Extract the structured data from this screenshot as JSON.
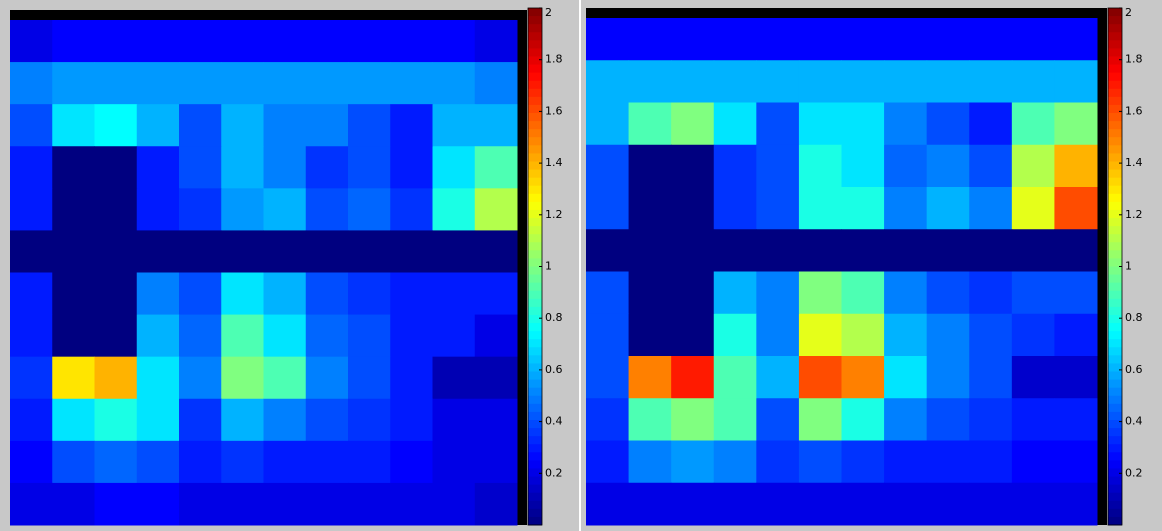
{
  "chart_data": [
    {
      "type": "heatmap",
      "clim": [
        0,
        2
      ],
      "cticks": [
        0.2,
        0.4,
        0.6,
        0.8,
        1,
        1.2,
        1.4,
        1.6,
        1.8,
        2
      ],
      "values": [
        [
          0.2,
          0.25,
          0.25,
          0.25,
          0.25,
          0.25,
          0.25,
          0.25,
          0.25,
          0.25,
          0.25,
          0.2
        ],
        [
          0.5,
          0.55,
          0.55,
          0.55,
          0.55,
          0.55,
          0.55,
          0.55,
          0.55,
          0.55,
          0.55,
          0.5
        ],
        [
          0.4,
          0.7,
          0.75,
          0.6,
          0.4,
          0.6,
          0.5,
          0.5,
          0.4,
          0.3,
          0.6,
          0.6
        ],
        [
          0.3,
          0,
          0,
          0.3,
          0.4,
          0.6,
          0.5,
          0.35,
          0.4,
          0.3,
          0.7,
          0.9
        ],
        [
          0.3,
          0,
          0,
          0.3,
          0.35,
          0.55,
          0.6,
          0.4,
          0.45,
          0.35,
          0.8,
          1.1
        ],
        [
          0,
          0,
          0,
          0,
          0,
          0,
          0,
          0,
          0,
          0,
          0,
          0
        ],
        [
          0.3,
          0,
          0,
          0.5,
          0.4,
          0.7,
          0.6,
          0.4,
          0.35,
          0.3,
          0.3,
          0.3
        ],
        [
          0.3,
          0,
          0,
          0.6,
          0.45,
          0.9,
          0.7,
          0.45,
          0.4,
          0.3,
          0.3,
          0.2
        ],
        [
          0.35,
          1.3,
          1.4,
          0.7,
          0.5,
          1.0,
          0.9,
          0.5,
          0.4,
          0.3,
          0.1,
          0.1
        ],
        [
          0.3,
          0.7,
          0.8,
          0.7,
          0.35,
          0.6,
          0.5,
          0.4,
          0.35,
          0.3,
          0.2,
          0.2
        ],
        [
          0.25,
          0.4,
          0.45,
          0.4,
          0.3,
          0.35,
          0.3,
          0.3,
          0.3,
          0.25,
          0.2,
          0.2
        ],
        [
          0.2,
          0.2,
          0.25,
          0.25,
          0.2,
          0.2,
          0.2,
          0.2,
          0.2,
          0.2,
          0.2,
          0.15
        ]
      ]
    },
    {
      "type": "heatmap",
      "clim": [
        0,
        2
      ],
      "cticks": [
        0.2,
        0.4,
        0.6,
        0.8,
        1,
        1.2,
        1.4,
        1.6,
        1.8,
        2
      ],
      "values": [
        [
          0.25,
          0.25,
          0.25,
          0.25,
          0.25,
          0.25,
          0.25,
          0.25,
          0.25,
          0.25,
          0.25,
          0.25
        ],
        [
          0.6,
          0.6,
          0.6,
          0.6,
          0.6,
          0.6,
          0.6,
          0.6,
          0.6,
          0.6,
          0.6,
          0.6
        ],
        [
          0.6,
          0.9,
          1.0,
          0.7,
          0.4,
          0.7,
          0.7,
          0.5,
          0.4,
          0.3,
          0.9,
          1.0
        ],
        [
          0.4,
          0,
          0,
          0.35,
          0.4,
          0.8,
          0.7,
          0.45,
          0.5,
          0.4,
          1.1,
          1.4
        ],
        [
          0.4,
          0,
          0,
          0.35,
          0.4,
          0.8,
          0.8,
          0.5,
          0.6,
          0.5,
          1.2,
          1.6
        ],
        [
          0,
          0,
          0,
          0,
          0,
          0,
          0,
          0,
          0,
          0,
          0,
          0
        ],
        [
          0.4,
          0,
          0,
          0.6,
          0.5,
          1.0,
          0.9,
          0.5,
          0.4,
          0.35,
          0.4,
          0.4
        ],
        [
          0.4,
          0,
          0,
          0.8,
          0.5,
          1.2,
          1.1,
          0.6,
          0.5,
          0.4,
          0.35,
          0.3
        ],
        [
          0.4,
          1.5,
          1.7,
          0.9,
          0.6,
          1.6,
          1.5,
          0.7,
          0.5,
          0.4,
          0.15,
          0.15
        ],
        [
          0.35,
          0.9,
          1.0,
          0.9,
          0.4,
          1.0,
          0.8,
          0.5,
          0.4,
          0.35,
          0.3,
          0.3
        ],
        [
          0.3,
          0.5,
          0.55,
          0.5,
          0.35,
          0.4,
          0.35,
          0.3,
          0.3,
          0.3,
          0.25,
          0.25
        ],
        [
          0.2,
          0.2,
          0.2,
          0.2,
          0.2,
          0.2,
          0.2,
          0.2,
          0.2,
          0.2,
          0.2,
          0.2
        ]
      ]
    }
  ]
}
